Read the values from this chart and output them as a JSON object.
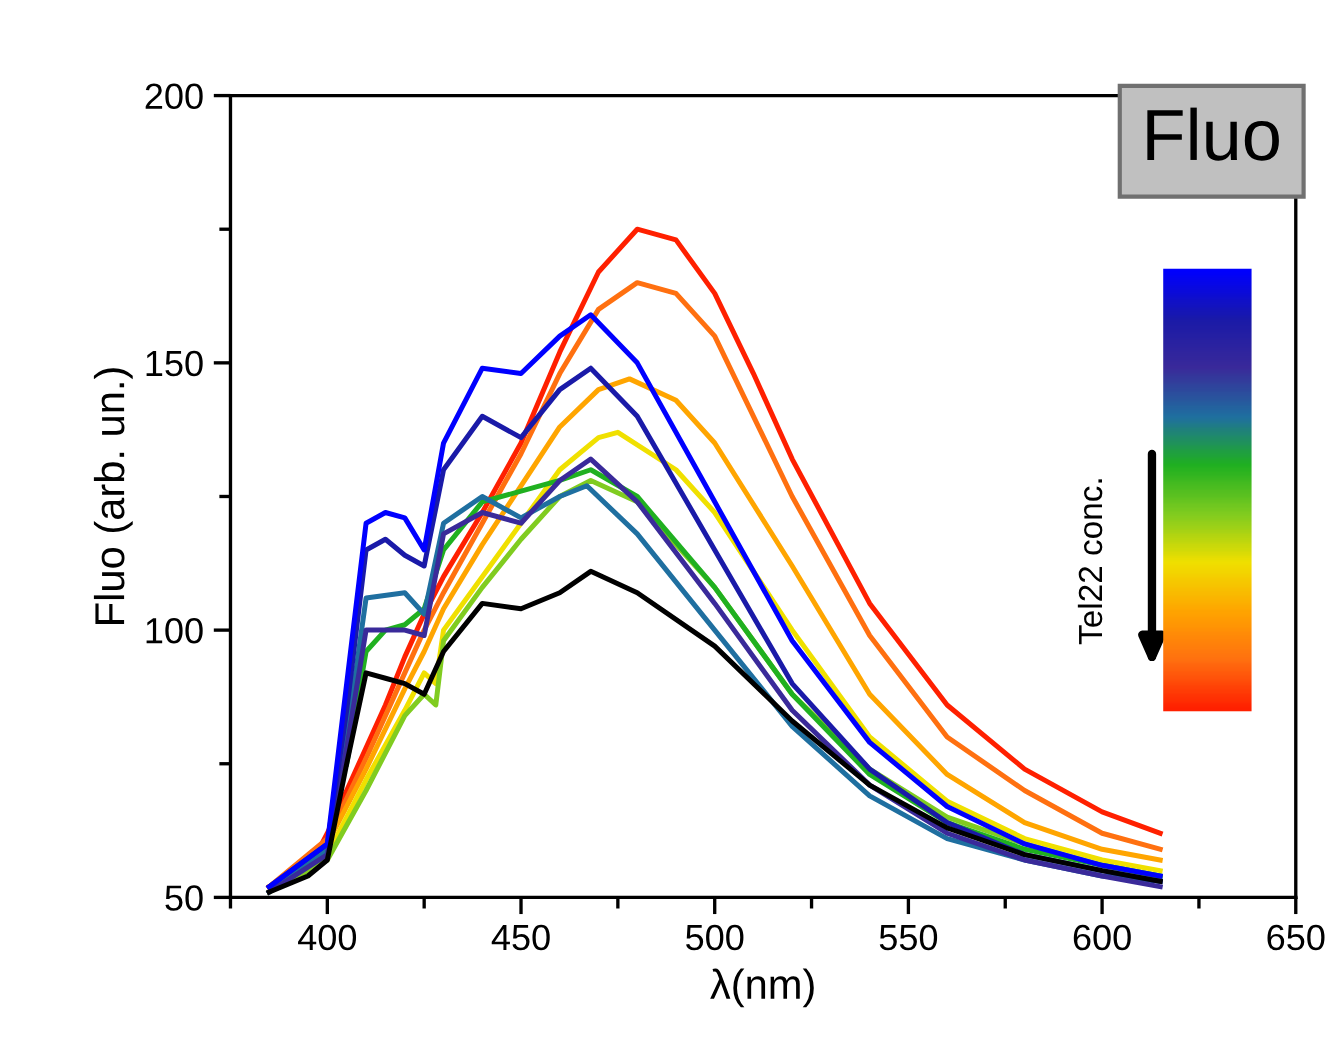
{
  "chart_data": {
    "type": "line",
    "xlabel": "λ(nm)",
    "ylabel": "Fluo (arb. un.)",
    "xlim": [
      375,
      650
    ],
    "xticks": [
      400,
      450,
      500,
      550,
      600,
      650
    ],
    "ylim": [
      50,
      200
    ],
    "yticks": [
      50,
      100,
      150,
      200
    ],
    "grid": false,
    "legend": false,
    "marker": "none",
    "line_style": "solid",
    "annotations": [
      "Fluo",
      "Tel22 conc."
    ],
    "series": [
      {
        "color": "#ff2000",
        "x": [
          385,
          395,
          400,
          405,
          410,
          415,
          420,
          425,
          430,
          440,
          450,
          460,
          470,
          480,
          490,
          500,
          510,
          520,
          540,
          560,
          580,
          600,
          615
        ],
        "values": [
          52,
          55,
          62,
          70,
          78,
          86,
          95,
          103,
          110,
          122,
          135,
          152,
          167,
          175,
          173,
          163,
          148,
          132,
          105,
          86,
          74,
          66,
          62
        ]
      },
      {
        "color": "#ff7010",
        "x": [
          385,
          400,
          410,
          420,
          425,
          430,
          440,
          450,
          460,
          470,
          480,
          490,
          500,
          510,
          520,
          540,
          560,
          580,
          600,
          615
        ],
        "values": [
          52,
          61,
          76,
          92,
          100,
          107,
          120,
          133,
          148,
          160,
          165,
          163,
          155,
          140,
          125,
          99,
          80,
          70,
          62,
          59
        ]
      },
      {
        "color": "#ffa500",
        "x": [
          385,
          400,
          410,
          420,
          425,
          430,
          440,
          450,
          460,
          470,
          478,
          490,
          500,
          520,
          540,
          560,
          580,
          600,
          615
        ],
        "values": [
          52,
          60,
          74,
          89,
          96,
          104,
          116,
          127,
          138,
          145,
          147,
          143,
          135,
          112,
          88,
          73,
          64,
          59,
          57
        ]
      },
      {
        "color": "#f0e000",
        "x": [
          385,
          400,
          410,
          420,
          425,
          428,
          430,
          440,
          450,
          460,
          470,
          475,
          490,
          500,
          520,
          540,
          560,
          580,
          600,
          615
        ],
        "values": [
          51,
          58,
          72,
          85,
          92,
          90,
          100,
          110,
          120,
          130,
          136,
          137,
          130,
          122,
          100,
          80,
          68,
          61,
          57,
          55
        ]
      },
      {
        "color": "#80cc20",
        "x": [
          385,
          400,
          410,
          420,
          425,
          428,
          430,
          440,
          450,
          460,
          468,
          480,
          500,
          520,
          540,
          560,
          580,
          600,
          615
        ],
        "values": [
          51,
          57,
          70,
          84,
          88,
          86,
          98,
          108,
          117,
          125,
          128,
          124,
          108,
          88,
          74,
          65,
          60,
          56,
          54
        ]
      },
      {
        "color": "#20b020",
        "x": [
          405,
          410,
          415,
          420,
          425,
          430,
          440,
          450,
          460,
          468,
          480,
          500,
          520,
          540,
          560,
          580,
          600,
          615
        ],
        "values": [
          75,
          96,
          100,
          101,
          104,
          115,
          124,
          126,
          128,
          130,
          125,
          108,
          88,
          73,
          64,
          59,
          56,
          54
        ]
      },
      {
        "color": "#1f6fa0",
        "x": [
          385,
          400,
          405,
          410,
          420,
          425,
          430,
          440,
          450,
          460,
          467,
          480,
          500,
          520,
          540,
          560,
          580,
          600,
          615
        ],
        "values": [
          51,
          59,
          80,
          106,
          107,
          103,
          120,
          125,
          121,
          125,
          127,
          118,
          100,
          82,
          69,
          61,
          57,
          54,
          53
        ]
      },
      {
        "color": "#3a2a9a",
        "x": [
          385,
          400,
          405,
          410,
          420,
          425,
          430,
          440,
          450,
          460,
          468,
          480,
          500,
          520,
          540,
          560,
          580,
          600,
          615
        ],
        "values": [
          51,
          58,
          78,
          100,
          100,
          99,
          118,
          122,
          120,
          128,
          132,
          124,
          105,
          85,
          71,
          62,
          57,
          54,
          52
        ]
      },
      {
        "color": "#1a1aa8",
        "x": [
          385,
          400,
          405,
          410,
          415,
          420,
          425,
          430,
          440,
          450,
          460,
          468,
          480,
          500,
          520,
          540,
          560,
          580,
          600,
          615
        ],
        "values": [
          52,
          60,
          85,
          115,
          117,
          114,
          112,
          130,
          140,
          136,
          145,
          149,
          140,
          115,
          90,
          74,
          64,
          58,
          55,
          53
        ]
      },
      {
        "color": "#0000ff",
        "x": [
          385,
          400,
          405,
          410,
          415,
          420,
          425,
          430,
          440,
          450,
          460,
          468,
          480,
          500,
          520,
          540,
          560,
          580,
          600,
          615
        ],
        "values": [
          52,
          60,
          90,
          120,
          122,
          121,
          115,
          135,
          149,
          148,
          155,
          159,
          150,
          124,
          98,
          79,
          67,
          60,
          56,
          54
        ]
      },
      {
        "color": "#000000",
        "x": [
          385,
          395,
          400,
          405,
          410,
          415,
          420,
          425,
          430,
          440,
          450,
          460,
          468,
          480,
          500,
          520,
          540,
          560,
          580,
          600,
          615
        ],
        "values": [
          51,
          54,
          57,
          75,
          92,
          91,
          90,
          88,
          96,
          105,
          104,
          107,
          111,
          107,
          97,
          83,
          71,
          63,
          58,
          55,
          53
        ]
      }
    ]
  }
}
